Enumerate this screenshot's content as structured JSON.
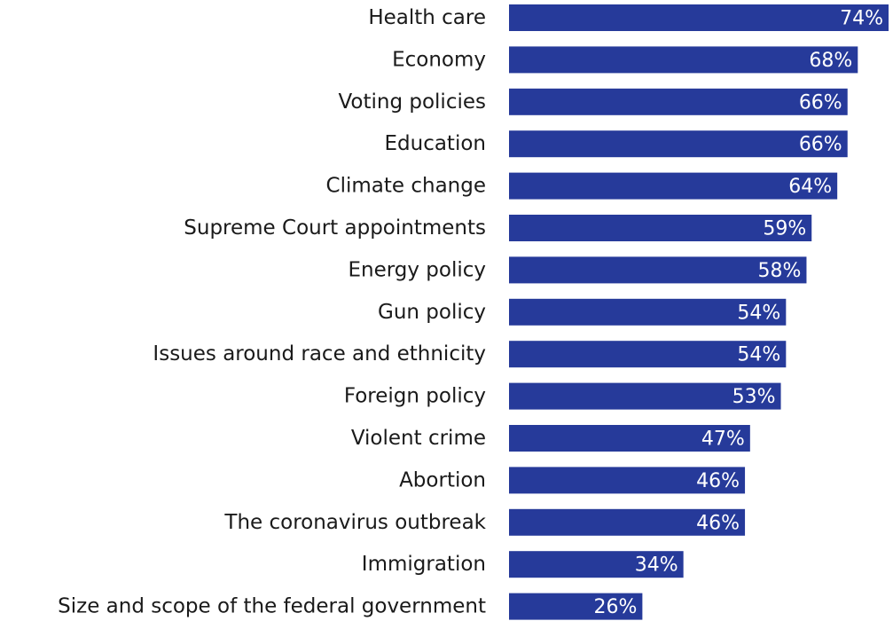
{
  "chart_data": {
    "type": "bar",
    "orientation": "horizontal",
    "categories": [
      "Health care",
      "Economy",
      "Voting policies",
      "Education",
      "Climate change",
      "Supreme Court appointments",
      "Energy policy",
      "Gun policy",
      "Issues around race and ethnicity",
      "Foreign policy",
      "Violent crime",
      "Abortion",
      "The coronavirus outbreak",
      "Immigration",
      "Size and scope of the federal government"
    ],
    "values": [
      74,
      68,
      66,
      66,
      64,
      59,
      58,
      54,
      54,
      53,
      47,
      46,
      46,
      34,
      26
    ],
    "value_labels": [
      "74%",
      "68%",
      "66%",
      "66%",
      "64%",
      "59%",
      "58%",
      "54%",
      "54%",
      "53%",
      "47%",
      "46%",
      "46%",
      "34%",
      "26%"
    ],
    "unit": "%",
    "title": "",
    "xlabel": "",
    "ylabel": "",
    "xlim": [
      0,
      74
    ],
    "grid": false,
    "legend": "none",
    "colors": {
      "bar": "#263a9a",
      "value_text": "#ffffff",
      "category_text": "#1a1a1a"
    }
  }
}
